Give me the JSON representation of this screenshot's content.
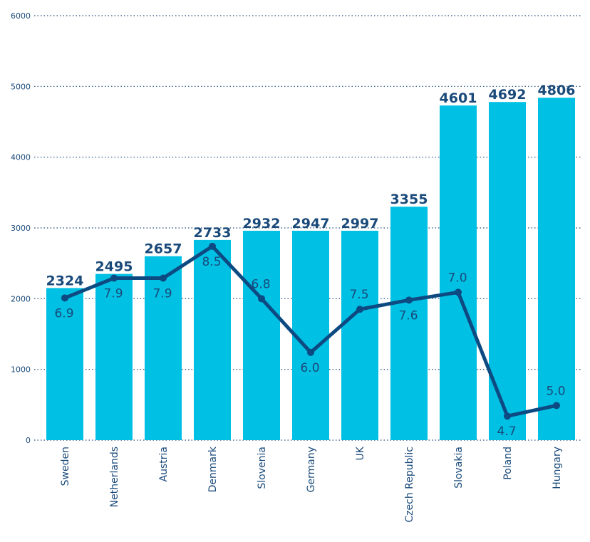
{
  "chart_data": {
    "type": "bar",
    "categories": [
      "Sweden",
      "Netherlands",
      "Austria",
      "Denmark",
      "Slovenia",
      "Germany",
      "UK",
      "Czech Republic",
      "Slovakia",
      "Poland",
      "Hungary"
    ],
    "bar_values": [
      2324,
      2495,
      2657,
      2733,
      2932,
      2947,
      2997,
      3355,
      4601,
      4692,
      4806
    ],
    "bar_display_values": [
      2150,
      2350,
      2600,
      2830,
      2960,
      2960,
      2960,
      3300,
      4730,
      4780,
      4840
    ],
    "line_values": [
      6.9,
      7.9,
      7.9,
      8.5,
      6.8,
      6.0,
      7.5,
      7.6,
      7.0,
      4.7,
      5.0
    ],
    "line_labels": [
      "6.9",
      "7.9",
      "7.9",
      "8.5",
      "6.8",
      "6.0",
      "7.5",
      "7.6",
      "7.0",
      "4.7",
      "5.0"
    ],
    "line_points_left_axis": [
      2010,
      2290,
      2290,
      2740,
      2000,
      1240,
      1850,
      1980,
      2090,
      340,
      490
    ],
    "y_ticks": [
      "0",
      "1000",
      "2000",
      "3000",
      "4000",
      "5000",
      "6000"
    ],
    "ylim": [
      0,
      6000
    ],
    "grid": true,
    "colors": {
      "bar": "#00c0e4",
      "line": "#0d4a82",
      "text": "#1a4a7a",
      "grid": "#1a4a7a"
    }
  }
}
